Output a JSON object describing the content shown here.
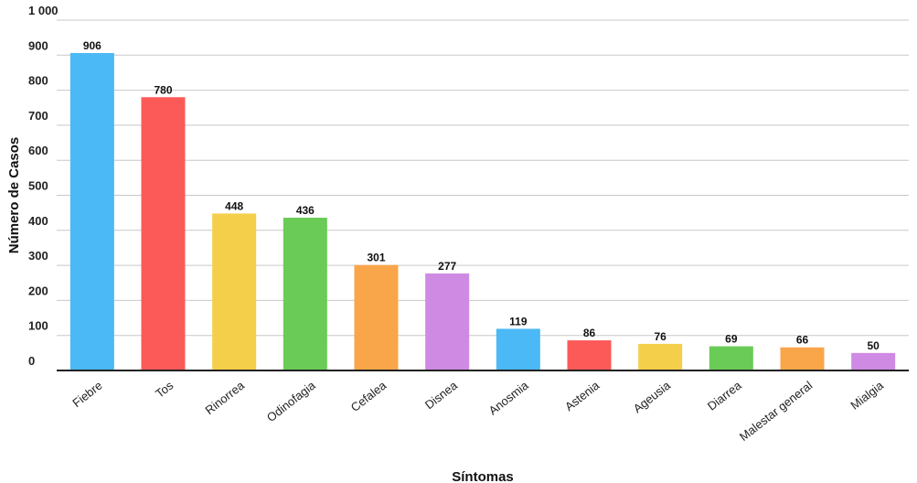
{
  "chart_data": {
    "type": "bar",
    "title": "",
    "xlabel": "Síntomas",
    "ylabel": "Número de Casos",
    "ylim": [
      0,
      1000
    ],
    "yticks": [
      0,
      100,
      200,
      300,
      400,
      500,
      600,
      700,
      800,
      900,
      1000
    ],
    "ytick_labels": [
      "0",
      "100",
      "200",
      "300",
      "400",
      "500",
      "600",
      "700",
      "800",
      "900",
      "1 000"
    ],
    "grid": true,
    "legend": "none",
    "categories": [
      "Fiebre",
      "Tos",
      "Rinorrea",
      "Odinofagia",
      "Cefalea",
      "Disnea",
      "Anosmia",
      "Astenia",
      "Ageusia",
      "Diarrea",
      "Malestar general",
      "Mialgia"
    ],
    "values": [
      906,
      780,
      448,
      436,
      301,
      277,
      119,
      86,
      76,
      69,
      66,
      50
    ],
    "data_labels": [
      "906",
      "780",
      "448",
      "436",
      "301",
      "277",
      "119",
      "86",
      "76",
      "69",
      "66",
      "50"
    ],
    "colors": [
      "#4bb9f5",
      "#fb5a58",
      "#f4cf4a",
      "#6acb57",
      "#f9a54a",
      "#cf8ae3",
      "#4bb9f5",
      "#fb5a58",
      "#f4cf4a",
      "#6acb57",
      "#f9a54a",
      "#cf8ae3"
    ]
  }
}
